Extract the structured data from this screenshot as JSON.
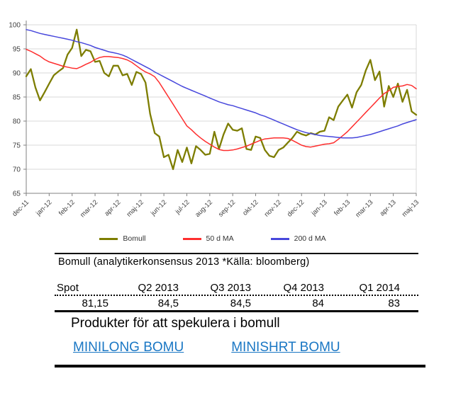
{
  "chart_data": {
    "type": "line",
    "title": "",
    "xlabel": "",
    "ylabel": "",
    "ylim": [
      65,
      100
    ],
    "y_ticks": [
      65,
      70,
      75,
      80,
      85,
      90,
      95,
      100
    ],
    "grid": "horizontal",
    "legend_position": "bottom",
    "x_tick_labels": [
      "dec-11",
      "jan-12",
      "feb-12",
      "mar-12",
      "apr-12",
      "maj-12",
      "jun-12",
      "jul-12",
      "aug-12",
      "sep-12",
      "okt-12",
      "nov-12",
      "dec-12",
      "jan-13",
      "feb-13",
      "mar-13",
      "apr-13",
      "maj-13"
    ],
    "colors": {
      "grid": "#d9d9d9",
      "axis": "#808080",
      "tick_text": "#3f3f3f"
    },
    "series": [
      {
        "name": "Bomull",
        "color": "#7d7d00",
        "width": 2.3,
        "values": [
          89.3,
          90.8,
          87.0,
          84.3,
          86.0,
          87.8,
          89.5,
          90.3,
          91.0,
          93.8,
          95.2,
          99.0,
          93.5,
          94.8,
          94.5,
          92.3,
          92.5,
          90.0,
          89.3,
          91.5,
          91.5,
          89.5,
          89.8,
          87.5,
          90.2,
          89.8,
          88.0,
          81.5,
          77.5,
          76.8,
          72.5,
          73.0,
          70.0,
          74.0,
          71.5,
          74.5,
          71.2,
          74.8,
          74.0,
          73.0,
          73.2,
          77.8,
          74.2,
          77.2,
          79.5,
          78.2,
          78.0,
          78.5,
          74.2,
          74.0,
          76.8,
          76.5,
          74.0,
          72.8,
          72.5,
          74.0,
          74.5,
          75.5,
          76.5,
          77.8,
          77.3,
          77.0,
          77.5,
          77.2,
          77.8,
          78.0,
          80.8,
          80.2,
          83.0,
          84.3,
          85.5,
          82.8,
          86.0,
          87.5,
          90.5,
          92.7,
          88.5,
          90.3,
          83.0,
          87.3,
          85.0,
          87.8,
          84.0,
          86.5,
          82.0,
          81.3
        ]
      },
      {
        "name": "50 d MA",
        "color": "#fe2e2e",
        "width": 1.5,
        "values": [
          94.9,
          94.5,
          94.0,
          93.5,
          92.8,
          92.3,
          92.0,
          91.7,
          91.4,
          91.2,
          91.0,
          90.9,
          91.3,
          91.8,
          92.2,
          92.8,
          93.2,
          93.4,
          93.4,
          93.3,
          93.2,
          93.0,
          92.7,
          92.2,
          91.5,
          90.8,
          90.2,
          89.8,
          89.2,
          88.0,
          86.5,
          85.0,
          83.5,
          82.0,
          80.5,
          79.0,
          78.2,
          77.3,
          76.5,
          75.8,
          75.2,
          74.6,
          74.1,
          73.9,
          73.9,
          74.0,
          74.2,
          74.5,
          74.8,
          75.2,
          75.6,
          76.0,
          76.3,
          76.4,
          76.5,
          76.5,
          76.5,
          76.4,
          76.0,
          75.5,
          75.0,
          74.7,
          74.6,
          74.8,
          75.0,
          75.2,
          75.3,
          75.5,
          76.2,
          77.0,
          77.8,
          78.8,
          79.8,
          80.8,
          81.8,
          82.8,
          83.8,
          84.8,
          85.7,
          86.3,
          87.0,
          87.2,
          87.3,
          87.6,
          87.4,
          86.7
        ]
      },
      {
        "name": "200 d MA",
        "color": "#4747dc",
        "width": 1.5,
        "values": [
          99.0,
          98.8,
          98.5,
          98.2,
          98.0,
          97.8,
          97.6,
          97.4,
          97.2,
          97.0,
          96.8,
          96.5,
          96.3,
          96.0,
          95.7,
          95.3,
          95.0,
          94.7,
          94.4,
          94.2,
          94.0,
          93.7,
          93.3,
          92.8,
          92.3,
          91.8,
          91.3,
          90.8,
          90.2,
          89.7,
          89.2,
          88.7,
          88.2,
          87.7,
          87.2,
          86.8,
          86.4,
          86.0,
          85.6,
          85.2,
          84.8,
          84.4,
          84.0,
          83.7,
          83.4,
          83.2,
          82.9,
          82.6,
          82.3,
          82.0,
          81.7,
          81.3,
          81.0,
          80.6,
          80.2,
          79.8,
          79.4,
          79.0,
          78.6,
          78.2,
          77.9,
          77.6,
          77.4,
          77.2,
          77.0,
          76.9,
          76.8,
          76.7,
          76.6,
          76.5,
          76.5,
          76.5,
          76.6,
          76.8,
          77.0,
          77.2,
          77.5,
          77.8,
          78.1,
          78.4,
          78.7,
          79.0,
          79.4,
          79.7,
          80.0,
          80.3
        ]
      }
    ]
  },
  "consensus": {
    "caption": "Bomull (analytikerkonsensus 2013 *Källa: bloomberg)",
    "headers": [
      "Spot",
      "Q2 2013",
      "Q3 2013",
      "Q4 2013",
      "Q1 2014"
    ],
    "values": [
      "81,15",
      "84,5",
      "84,5",
      "84",
      "83"
    ]
  },
  "products": {
    "title": "Produkter för att spekulera i bomull",
    "link_color": "#1a77c4",
    "links": [
      {
        "label": "MINILONG BOMU"
      },
      {
        "label": "MINISHRT BOMU"
      }
    ]
  }
}
